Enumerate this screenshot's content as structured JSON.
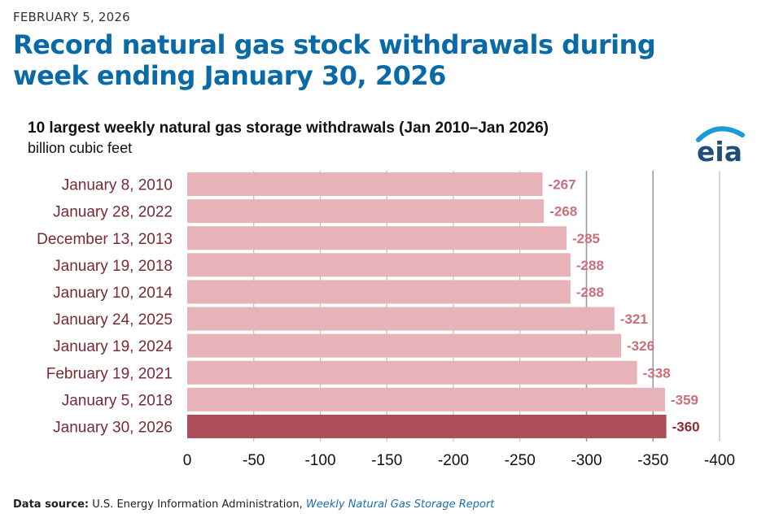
{
  "header": {
    "date": "FEBRUARY 5, 2026",
    "title": "Record natural gas stock withdrawals during week ending January 30, 2026"
  },
  "logo": {
    "text": "eia",
    "color": "#1d4f7a",
    "arc_color": "#1a9bd7"
  },
  "footer": {
    "label": "Data source:",
    "source": "U.S. Energy Information Administration,",
    "report": "Weekly Natural Gas Storage Report"
  },
  "chart_data": {
    "type": "bar",
    "orientation": "horizontal",
    "title": "10 largest weekly natural gas storage withdrawals (Jan 2010–Jan 2026)",
    "subtitle": "billion cubic feet",
    "xlabel": "",
    "ylabel": "",
    "xlim": [
      0,
      -400
    ],
    "x_ticks": [
      0,
      -50,
      -100,
      -150,
      -200,
      -250,
      -300,
      -350,
      -400
    ],
    "x_tick_labels": [
      "0",
      "-50",
      "-100",
      "-150",
      "-200",
      "-250",
      "-300",
      "-350",
      "-400"
    ],
    "grid": true,
    "categories": [
      "January 8, 2010",
      "January 28, 2022",
      "December 13, 2013",
      "January 19, 2018",
      "January 10, 2014",
      "January 24, 2025",
      "January 19, 2024",
      "February 19, 2021",
      "January 5, 2018",
      "January 30, 2026"
    ],
    "values": [
      -267,
      -268,
      -285,
      -288,
      -288,
      -321,
      -326,
      -338,
      -359,
      -360
    ],
    "data_labels": [
      "-267",
      "-268",
      "-285",
      "-288",
      "-288",
      "-321",
      "-326",
      "-338",
      "-359",
      "-360"
    ],
    "highlight_index": 9,
    "colors": {
      "bar": "#e6b3b9",
      "bar_highlight": "#ad4f5b",
      "label": "#c8707b",
      "label_highlight": "#8a2a35",
      "category_text": "#7a2a33",
      "grid": "#bfbfbf",
      "grid_dark": "#9a9a9a"
    }
  }
}
